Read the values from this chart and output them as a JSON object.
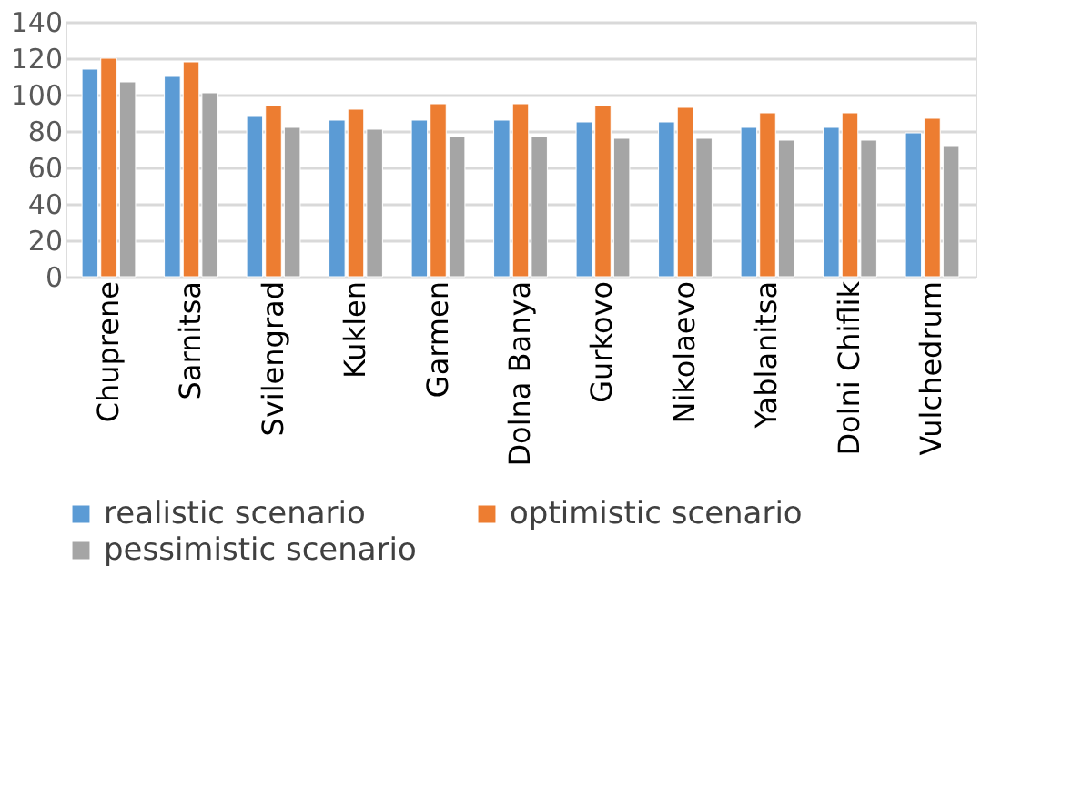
{
  "chart_data": {
    "type": "bar",
    "categories": [
      "Chuprene",
      "Sarnitsa",
      "Svilengrad",
      "Kuklen",
      "Garmen",
      "Dolna Banya",
      "Gurkovo",
      "Nikolaevo",
      "Yablanitsa",
      "Dolni Chiflik",
      "Vulchedrum"
    ],
    "series": [
      {
        "name": "realistic scenario",
        "color": "#5b9bd5",
        "values": [
          114,
          110,
          88,
          86,
          86,
          86,
          85,
          85,
          82,
          82,
          79
        ]
      },
      {
        "name": "optimistic scenario",
        "color": "#ed7d31",
        "values": [
          120,
          118,
          94,
          92,
          95,
          95,
          94,
          93,
          90,
          90,
          87
        ]
      },
      {
        "name": "pessimistic scenario",
        "color": "#a5a5a5",
        "values": [
          107,
          101,
          82,
          81,
          77,
          77,
          76,
          76,
          75,
          75,
          72
        ]
      }
    ],
    "ylim": [
      0,
      140
    ],
    "yticks": [
      0,
      20,
      40,
      60,
      80,
      100,
      120,
      140
    ],
    "grid": "y",
    "legend": "bottom"
  }
}
